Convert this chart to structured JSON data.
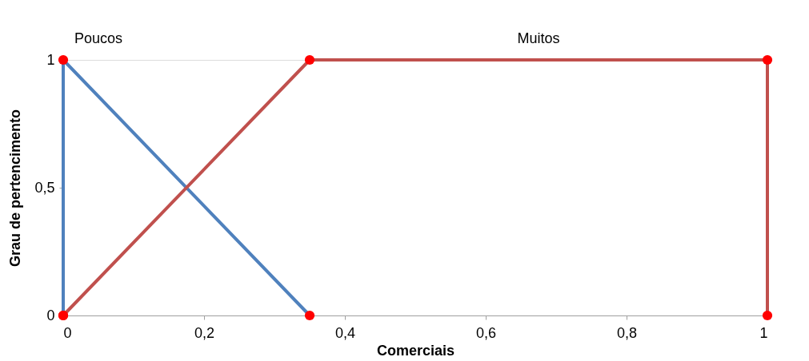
{
  "chart_data": {
    "type": "line",
    "xlabel": "Comerciais",
    "ylabel": "Grau de pertencimento",
    "series": [
      {
        "name": "Poucos",
        "color": "#4f81bd",
        "x": [
          0,
          0,
          0.35
        ],
        "values": [
          0,
          1,
          0
        ]
      },
      {
        "name": "Muitos",
        "color": "#c0504d",
        "x": [
          0,
          0.35,
          1,
          1
        ],
        "values": [
          0,
          1,
          1,
          0
        ]
      }
    ],
    "xlim": [
      0,
      1
    ],
    "ylim": [
      0,
      1
    ],
    "xticks": [
      0,
      {
        "value": 0.2,
        "label": "0,2"
      },
      {
        "value": 0.4,
        "label": "0,4"
      },
      {
        "value": 0.6,
        "label": "0,6"
      },
      {
        "value": 0.8,
        "label": "0,8"
      },
      1
    ],
    "yticks": [
      0,
      {
        "value": 0.5,
        "label": "0,5"
      },
      1
    ],
    "grid": false,
    "marker": "circle",
    "line_style": "solid"
  }
}
